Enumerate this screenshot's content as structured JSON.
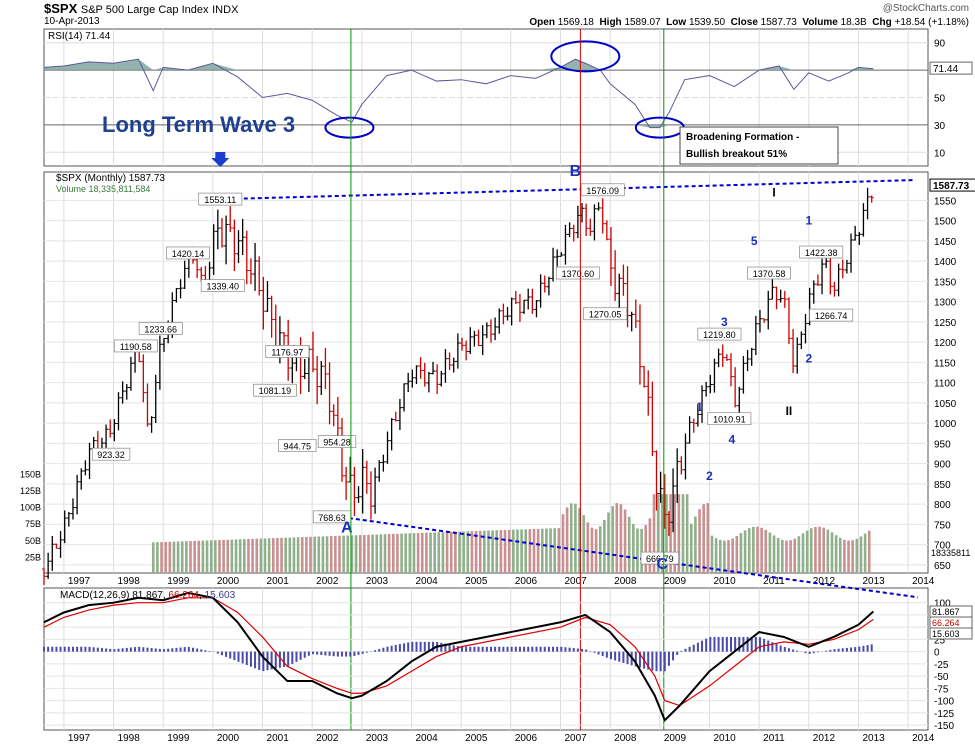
{
  "header": {
    "symbol": "$SPX",
    "name": "S&P 500 Large Cap Index",
    "exchange": "INDX",
    "date": "10-Apr-2013",
    "brand": "@StockCharts.com",
    "open_label": "Open",
    "open": "1569.18",
    "high_label": "High",
    "high": "1589.07",
    "low_label": "Low",
    "low": "1539.50",
    "close_label": "Close",
    "close": "1587.73",
    "volume_label": "Volume",
    "volume": "18.3B",
    "chg_label": "Chg",
    "chg": "+18.54 (+1.18%)"
  },
  "colors": {
    "up": "#000000",
    "down": "#cc0000",
    "rsi": "#5a5a9a",
    "rsi_fill": "#7aa09a",
    "trend": "#0000cc",
    "macd": "#000000",
    "signal": "#dd0000",
    "hist": "#4a4aaa",
    "vol_up": "#8fb08a",
    "vol_down": "#c89090",
    "green_line": "#009900",
    "red_line": "#cc0000",
    "annot": "#1f3f8f"
  },
  "chart_data": [
    {
      "type": "line",
      "panel": "RSI",
      "title": "RSI(14) 71.44",
      "current_label": "71.44",
      "y_ticks": [
        10,
        30,
        50,
        70,
        90
      ],
      "ylim": [
        0,
        100
      ],
      "x": [
        1996.6,
        1997.0,
        1997.5,
        1998.0,
        1998.5,
        1998.8,
        1999.0,
        1999.5,
        2000.0,
        2000.5,
        2001.0,
        2001.5,
        2002.0,
        2002.5,
        2002.8,
        2003.0,
        2003.5,
        2004.0,
        2004.5,
        2005.0,
        2005.5,
        2006.0,
        2006.5,
        2007.0,
        2007.3,
        2007.5,
        2007.8,
        2008.0,
        2008.5,
        2008.8,
        2009.0,
        2009.2,
        2009.5,
        2010.0,
        2010.5,
        2011.0,
        2011.4,
        2011.7,
        2012.0,
        2012.4,
        2012.8,
        2013.0,
        2013.3
      ],
      "values": [
        72,
        73,
        76,
        75,
        78,
        55,
        72,
        70,
        75,
        65,
        50,
        53,
        48,
        37,
        32,
        45,
        66,
        70,
        62,
        63,
        60,
        66,
        64,
        72,
        78,
        75,
        70,
        60,
        45,
        28,
        28,
        40,
        63,
        66,
        58,
        70,
        73,
        56,
        68,
        62,
        68,
        72,
        71
      ]
    },
    {
      "type": "bar",
      "panel": "Price",
      "title": "$SPX (Monthly) 1587.73",
      "volume_label": "Volume 18,335,811,584",
      "current_label": "1587.73",
      "volume_current_label": "18335811",
      "y_ticks": [
        650,
        700,
        750,
        800,
        850,
        900,
        950,
        1000,
        1050,
        1100,
        1150,
        1200,
        1250,
        1300,
        1350,
        1400,
        1450,
        1500,
        1550
      ],
      "volume_ticks": [
        "25B",
        "50B",
        "75B",
        "100B",
        "125B",
        "150B"
      ],
      "x_ticks": [
        "1997",
        "1998",
        "1999",
        "2000",
        "2001",
        "2002",
        "2003",
        "2004",
        "2005",
        "2006",
        "2007",
        "2008",
        "2009",
        "2010",
        "2011",
        "2012",
        "2013",
        "2014"
      ],
      "ylim": [
        630,
        1620
      ],
      "key_points": [
        {
          "t": 1996.6,
          "v": 640
        },
        {
          "t": 1997.0,
          "v": 740
        },
        {
          "t": 1997.5,
          "v": 930
        },
        {
          "t": 1997.9,
          "v": 970
        },
        {
          "t": 1998.3,
          "v": 1120
        },
        {
          "t": 1998.5,
          "v": 1190
        },
        {
          "t": 1998.7,
          "v": 960
        },
        {
          "t": 1998.9,
          "v": 1160
        },
        {
          "t": 1999.3,
          "v": 1340
        },
        {
          "t": 1999.6,
          "v": 1420
        },
        {
          "t": 1999.8,
          "v": 1330
        },
        {
          "t": 2000.1,
          "v": 1480
        },
        {
          "t": 2000.5,
          "v": 1450
        },
        {
          "t": 2000.9,
          "v": 1350
        },
        {
          "t": 2001.2,
          "v": 1240
        },
        {
          "t": 2001.7,
          "v": 1130
        },
        {
          "t": 2001.9,
          "v": 1150
        },
        {
          "t": 2002.3,
          "v": 1100
        },
        {
          "t": 2002.6,
          "v": 900
        },
        {
          "t": 2002.8,
          "v": 820
        },
        {
          "t": 2003.0,
          "v": 860
        },
        {
          "t": 2003.2,
          "v": 830
        },
        {
          "t": 2003.6,
          "v": 990
        },
        {
          "t": 2004.0,
          "v": 1130
        },
        {
          "t": 2004.5,
          "v": 1110
        },
        {
          "t": 2005.0,
          "v": 1190
        },
        {
          "t": 2005.5,
          "v": 1220
        },
        {
          "t": 2006.0,
          "v": 1290
        },
        {
          "t": 2006.5,
          "v": 1300
        },
        {
          "t": 2007.0,
          "v": 1430
        },
        {
          "t": 2007.4,
          "v": 1520
        },
        {
          "t": 2007.6,
          "v": 1480
        },
        {
          "t": 2007.8,
          "v": 1550
        },
        {
          "t": 2008.0,
          "v": 1380
        },
        {
          "t": 2008.4,
          "v": 1290
        },
        {
          "t": 2008.7,
          "v": 1100
        },
        {
          "t": 2008.9,
          "v": 880
        },
        {
          "t": 2009.1,
          "v": 760
        },
        {
          "t": 2009.2,
          "v": 800
        },
        {
          "t": 2009.5,
          "v": 950
        },
        {
          "t": 2010.0,
          "v": 1110
        },
        {
          "t": 2010.3,
          "v": 1190
        },
        {
          "t": 2010.5,
          "v": 1050
        },
        {
          "t": 2010.9,
          "v": 1220
        },
        {
          "t": 2011.3,
          "v": 1330
        },
        {
          "t": 2011.5,
          "v": 1300
        },
        {
          "t": 2011.7,
          "v": 1140
        },
        {
          "t": 2012.0,
          "v": 1300
        },
        {
          "t": 2012.3,
          "v": 1400
        },
        {
          "t": 2012.5,
          "v": 1330
        },
        {
          "t": 2012.8,
          "v": 1420
        },
        {
          "t": 2013.0,
          "v": 1480
        },
        {
          "t": 2013.3,
          "v": 1587
        }
      ],
      "price_labels": [
        {
          "t": 1997.95,
          "v": 923.32,
          "text": "923.32"
        },
        {
          "t": 1998.45,
          "v": 1190.58,
          "text": "1190.58"
        },
        {
          "t": 1998.95,
          "v": 1233.66,
          "text": "1233.66"
        },
        {
          "t": 1999.5,
          "v": 1420.14,
          "text": "1420.14"
        },
        {
          "t": 2000.15,
          "v": 1553.11,
          "text": "1553.11"
        },
        {
          "t": 2000.2,
          "v": 1339.4,
          "text": "1339.40"
        },
        {
          "t": 2001.25,
          "v": 1081.19,
          "text": "1081.19"
        },
        {
          "t": 2001.5,
          "v": 1176.97,
          "text": "1176.97"
        },
        {
          "t": 2001.7,
          "v": 944.75,
          "text": "944.75"
        },
        {
          "t": 2002.5,
          "v": 954.28,
          "text": "954.28"
        },
        {
          "t": 2002.4,
          "v": 768.63,
          "text": "768.63"
        },
        {
          "t": 2007.85,
          "v": 1576.09,
          "text": "1576.09"
        },
        {
          "t": 2007.35,
          "v": 1370.6,
          "text": "1370.60"
        },
        {
          "t": 2007.9,
          "v": 1270.05,
          "text": "1270.05"
        },
        {
          "t": 2009.0,
          "v": 666.79,
          "text": "666.79"
        },
        {
          "t": 2010.2,
          "v": 1219.8,
          "text": "1219.80"
        },
        {
          "t": 2010.4,
          "v": 1010.91,
          "text": "1010.91"
        },
        {
          "t": 2011.2,
          "v": 1370.58,
          "text": "1370.58"
        },
        {
          "t": 2012.25,
          "v": 1422.38,
          "text": "1422.38"
        },
        {
          "t": 2012.45,
          "v": 1266.74,
          "text": "1266.74"
        }
      ],
      "wave_labels": [
        {
          "t": 2002.7,
          "v": 730,
          "text": "A"
        },
        {
          "t": 2007.3,
          "v": 1610,
          "text": "B"
        },
        {
          "t": 2009.05,
          "v": 640,
          "text": "C"
        },
        {
          "t": 2009.8,
          "v": 1030,
          "text": "1"
        },
        {
          "t": 2010.0,
          "v": 860,
          "text": "2"
        },
        {
          "t": 2010.3,
          "v": 1240,
          "text": "3"
        },
        {
          "t": 2010.45,
          "v": 950,
          "text": "4"
        },
        {
          "t": 2010.9,
          "v": 1440,
          "text": "5"
        },
        {
          "t": 2011.3,
          "v": 1560,
          "text": "I"
        },
        {
          "t": 2011.6,
          "v": 1020,
          "text": "II"
        },
        {
          "t": 2012.0,
          "v": 1490,
          "text": "1"
        },
        {
          "t": 2012.0,
          "v": 1150,
          "text": "2"
        }
      ],
      "annotations": {
        "wave3": "Long Term Wave 3",
        "breakout_line1": "Broadening Formation -",
        "breakout_line2": "Bullish breakout 51%"
      }
    },
    {
      "type": "line",
      "panel": "MACD",
      "title": "MACD(12,26,9) 81.867, 66.264, 15.603",
      "title_parts": [
        "MACD(12,26,9)",
        "81.867",
        ", ",
        "66.264",
        ", ",
        "15.603"
      ],
      "current_labels": [
        "81.867",
        "66.264",
        "15.603"
      ],
      "y_ticks": [
        100,
        75,
        50,
        25,
        0,
        -25,
        -50,
        -75,
        -100,
        -125,
        -150
      ],
      "ylim": [
        -160,
        130
      ],
      "x": [
        1996.6,
        1997.0,
        1997.5,
        1998.0,
        1998.5,
        1999.0,
        1999.5,
        2000.0,
        2000.5,
        2001.0,
        2001.5,
        2002.0,
        2002.5,
        2002.8,
        2003.0,
        2003.5,
        2004.0,
        2004.5,
        2005.0,
        2006.0,
        2007.0,
        2007.5,
        2008.0,
        2008.5,
        2008.9,
        2009.1,
        2009.4,
        2010.0,
        2010.5,
        2011.0,
        2011.5,
        2012.0,
        2012.5,
        2013.0,
        2013.3
      ],
      "macd": [
        60,
        80,
        95,
        100,
        110,
        105,
        120,
        110,
        60,
        -10,
        -60,
        -60,
        -85,
        -95,
        -90,
        -60,
        -20,
        10,
        20,
        40,
        60,
        75,
        40,
        -20,
        -90,
        -140,
        -110,
        -40,
        0,
        40,
        30,
        10,
        30,
        55,
        82
      ],
      "signal": [
        50,
        70,
        85,
        95,
        100,
        100,
        110,
        110,
        80,
        30,
        -30,
        -55,
        -75,
        -85,
        -85,
        -70,
        -40,
        -10,
        10,
        30,
        50,
        70,
        55,
        10,
        -50,
        -100,
        -110,
        -70,
        -30,
        10,
        20,
        15,
        25,
        45,
        66
      ],
      "hist": [
        10,
        10,
        10,
        5,
        10,
        5,
        10,
        0,
        -20,
        -40,
        -30,
        -5,
        -10,
        -10,
        -5,
        10,
        20,
        20,
        10,
        10,
        10,
        5,
        -15,
        -30,
        -40,
        -40,
        0,
        30,
        30,
        30,
        10,
        -5,
        5,
        10,
        15.6
      ]
    }
  ]
}
